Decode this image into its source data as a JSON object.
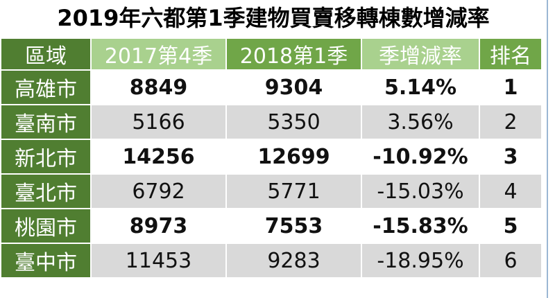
{
  "header": {
    "title": "2019年六都第1季建物買賣移轉棟數增減率"
  },
  "table": {
    "columns": [
      "區域",
      "2017第4季",
      "2018第1季",
      "季增減率",
      "排名"
    ],
    "rows": [
      [
        "高雄市",
        "8849",
        "9304",
        "5.14%",
        "1"
      ],
      [
        "臺南市",
        "5166",
        "5350",
        "3.56%",
        "2"
      ],
      [
        "新北市",
        "14256",
        "12699",
        "-10.92%",
        "3"
      ],
      [
        "臺北市",
        "6792",
        "5771",
        "-15.03%",
        "4"
      ],
      [
        "桃園市",
        "8973",
        "7553",
        "-15.83%",
        "5"
      ],
      [
        "臺中市",
        "11453",
        "9283",
        "-18.95%",
        "6"
      ]
    ]
  }
}
